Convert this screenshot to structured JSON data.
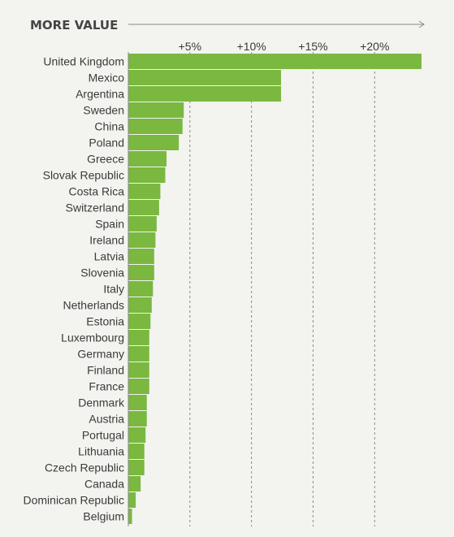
{
  "chart_data": {
    "type": "bar",
    "orientation": "horizontal",
    "title": "MORE VALUE",
    "bar_color": "#7ab840",
    "background": "#f3f3f0",
    "xlim": [
      0,
      24
    ],
    "xticks": [
      5,
      10,
      15,
      20
    ],
    "xtick_labels": [
      "+5%",
      "+10%",
      "+15%",
      "+20%"
    ],
    "grid": true,
    "categories": [
      "United Kingdom",
      "Mexico",
      "Argentina",
      "Sweden",
      "China",
      "Poland",
      "Greece",
      "Slovak Republic",
      "Costa Rica",
      "Switzerland",
      "Spain",
      "Ireland",
      "Latvia",
      "Slovenia",
      "Italy",
      "Netherlands",
      "Estonia",
      "Luxembourg",
      "Germany",
      "Finland",
      "France",
      "Denmark",
      "Austria",
      "Portugal",
      "Lithuania",
      "Czech Republic",
      "Canada",
      "Dominican Republic",
      "Belgium"
    ],
    "values": [
      23.8,
      12.4,
      12.4,
      4.5,
      4.4,
      4.1,
      3.1,
      3.0,
      2.6,
      2.5,
      2.3,
      2.2,
      2.1,
      2.1,
      2.0,
      1.9,
      1.8,
      1.7,
      1.7,
      1.7,
      1.7,
      1.5,
      1.5,
      1.4,
      1.3,
      1.3,
      1.0,
      0.6,
      0.3
    ]
  }
}
